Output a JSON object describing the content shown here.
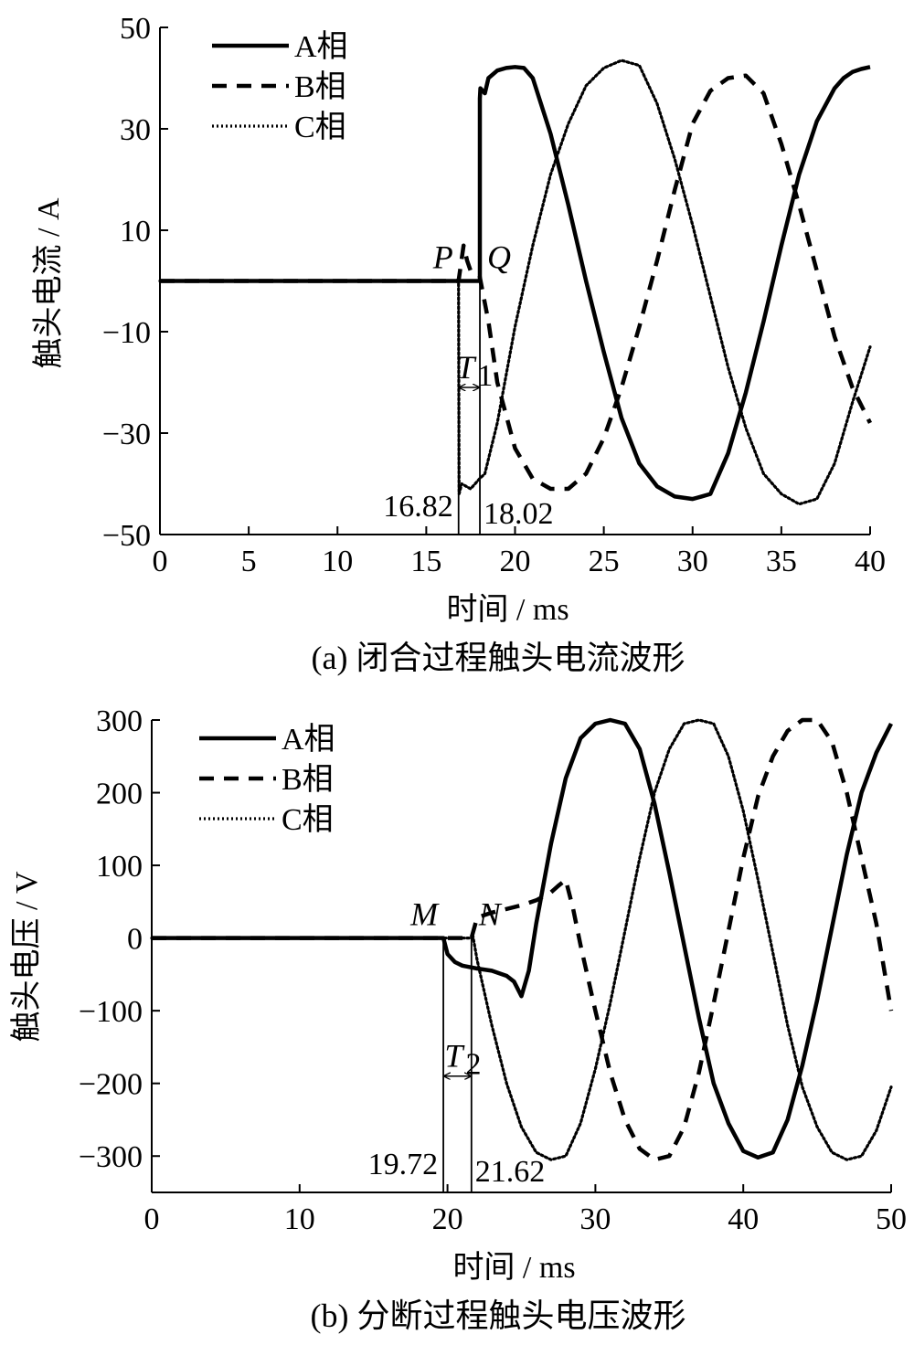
{
  "chart_data": [
    {
      "type": "line",
      "caption": "(a)  闭合过程触头电流波形",
      "xlabel": "时间 / ms",
      "ylabel": "触头电流 / A",
      "xlim": [
        0,
        40
      ],
      "ylim": [
        -50,
        50
      ],
      "xticks": [
        0,
        5,
        10,
        15,
        20,
        25,
        30,
        35,
        40
      ],
      "yticks": [
        -50,
        -30,
        -10,
        10,
        30,
        50
      ],
      "ytick_labels": [
        "−50",
        "−30",
        "−10",
        "10",
        "30",
        "50"
      ],
      "grid": false,
      "legend_position": "top-left",
      "series": [
        {
          "name": "A相",
          "style": "solid",
          "x": [
            0,
            18.02,
            18.02,
            18.05,
            18.3,
            18.5,
            19.0,
            19.5,
            20.0,
            20.5,
            21.0,
            22.0,
            23.0,
            24.0,
            25.0,
            26.0,
            27.0,
            28.0,
            29.0,
            30.0,
            30.5,
            31.0,
            32.0,
            33.0,
            34.0,
            35.0,
            36.0,
            37.0,
            38.0,
            38.5,
            39.0,
            39.5,
            40.0
          ],
          "y": [
            0,
            0,
            36,
            38,
            37,
            40,
            41.5,
            42.0,
            42.2,
            42.0,
            40,
            29,
            15,
            0,
            -14,
            -27,
            -36,
            -40.5,
            -42.5,
            -43.0,
            -42.5,
            -42,
            -34,
            -22,
            -8,
            7,
            21,
            31.5,
            38,
            40,
            41.2,
            41.8,
            42.2
          ]
        },
        {
          "name": "B相",
          "style": "dashed",
          "x": [
            0,
            16.82,
            17.1,
            17.3,
            17.5,
            18.0,
            18.5,
            19.0,
            20.0,
            21.0,
            22.0,
            23.0,
            24.0,
            25.0,
            26.0,
            27.0,
            28.0,
            29.0,
            30.0,
            31.0,
            32.0,
            33.0,
            34.0,
            35.0,
            36.0,
            37.0,
            38.0,
            39.0,
            40.0
          ],
          "y": [
            0,
            0,
            7,
            4,
            2,
            1,
            -8,
            -20,
            -33,
            -39,
            -41,
            -41,
            -38,
            -31,
            -21,
            -9,
            4,
            18,
            31,
            37.5,
            40,
            40.5,
            37,
            27,
            15,
            2,
            -11,
            -21,
            -28
          ]
        },
        {
          "name": "C相",
          "style": "dotted",
          "x": [
            0,
            16.82,
            16.85,
            17.0,
            17.5,
            18.0,
            18.3,
            19.0,
            20.0,
            21.0,
            22.0,
            23.0,
            24.0,
            25.0,
            26.0,
            27.0,
            28.0,
            29.0,
            30.0,
            31.0,
            32.0,
            33.0,
            34.0,
            35.0,
            36.0,
            37.0,
            38.0,
            39.0,
            40.0
          ],
          "y": [
            0,
            0,
            -42,
            -40,
            -41,
            -39,
            -38,
            -28,
            -9,
            7,
            21,
            31,
            38.5,
            42,
            43.5,
            42.5,
            35,
            24,
            11,
            -3,
            -17,
            -29,
            -38,
            -42,
            -44,
            -43,
            -36,
            -24,
            -13
          ]
        }
      ],
      "annotations": {
        "point_left": "P",
        "point_right": "Q",
        "interval_label": "T",
        "interval_subscript": "1",
        "t_left": 16.82,
        "t_right": 18.02,
        "t_left_label": "16.82",
        "t_right_label": "18.02",
        "point_level": 0,
        "interval_level": -21
      }
    },
    {
      "type": "line",
      "caption": "(b)  分断过程触头电压波形",
      "xlabel": "时间 / ms",
      "ylabel": "触头电压 / V",
      "xlim": [
        0,
        50
      ],
      "ylim": [
        -350,
        300
      ],
      "xticks": [
        0,
        10,
        20,
        30,
        40,
        50
      ],
      "yticks": [
        -300,
        -200,
        -100,
        0,
        100,
        200,
        300
      ],
      "ytick_labels": [
        "−300",
        "−200",
        "−100",
        "0",
        "100",
        "200",
        "300"
      ],
      "grid": false,
      "legend_position": "top-left",
      "series": [
        {
          "name": "A相",
          "style": "solid",
          "x": [
            0,
            19.72,
            20.0,
            20.5,
            21.0,
            22.0,
            23.0,
            24.0,
            24.5,
            25.0,
            25.5,
            26.0,
            27.0,
            28.0,
            29.0,
            30.0,
            31.0,
            32.0,
            33.0,
            34.0,
            35.0,
            36.0,
            37.0,
            38.0,
            39.0,
            40.0,
            41.0,
            42.0,
            43.0,
            44.0,
            45.0,
            46.0,
            47.0,
            48.0,
            49.0,
            50.0
          ],
          "y": [
            0,
            0,
            -22,
            -33,
            -38,
            -42,
            -45,
            -52,
            -60,
            -80,
            -45,
            20,
            130,
            220,
            275,
            295,
            300,
            295,
            260,
            185,
            90,
            -10,
            -110,
            -200,
            -255,
            -293,
            -302,
            -295,
            -250,
            -175,
            -85,
            15,
            115,
            200,
            255,
            295
          ]
        },
        {
          "name": "B相",
          "style": "dashed",
          "x": [
            0,
            21.62,
            22.0,
            23.0,
            24.0,
            25.0,
            26.0,
            27.0,
            27.5,
            28.0,
            28.5,
            29.0,
            30.0,
            31.0,
            32.0,
            33.0,
            34.0,
            35.0,
            36.0,
            37.0,
            38.0,
            39.0,
            40.0,
            41.0,
            42.0,
            43.0,
            44.0,
            45.0,
            46.0,
            47.0,
            48.0,
            49.0,
            50.0
          ],
          "y": [
            0,
            0,
            28,
            35,
            40,
            45,
            52,
            63,
            72,
            80,
            40,
            -10,
            -100,
            -185,
            -250,
            -290,
            -305,
            -300,
            -260,
            -185,
            -90,
            10,
            110,
            195,
            250,
            285,
            300,
            300,
            270,
            200,
            110,
            20,
            -100
          ]
        },
        {
          "name": "C相",
          "style": "dotted",
          "x": [
            0,
            21.62,
            21.7,
            22.0,
            23.0,
            24.0,
            25.0,
            26.0,
            27.0,
            28.0,
            29.0,
            30.0,
            31.0,
            32.0,
            33.0,
            34.0,
            35.0,
            36.0,
            37.0,
            38.0,
            39.0,
            40.0,
            41.0,
            42.0,
            43.0,
            44.0,
            45.0,
            46.0,
            47.0,
            48.0,
            49.0,
            50.0
          ],
          "y": [
            0,
            0,
            5,
            -30,
            -120,
            -200,
            -260,
            -295,
            -305,
            -300,
            -255,
            -180,
            -90,
            10,
            110,
            200,
            260,
            295,
            300,
            295,
            250,
            175,
            80,
            -20,
            -120,
            -205,
            -260,
            -295,
            -305,
            -300,
            -265,
            -205
          ]
        }
      ],
      "annotations": {
        "point_left": "M",
        "point_right": "N",
        "interval_label": "T",
        "interval_subscript": "2",
        "t_left": 19.72,
        "t_right": 21.62,
        "t_left_label": "19.72",
        "t_right_label": "21.62",
        "point_level": 0,
        "interval_level": -190
      }
    }
  ]
}
